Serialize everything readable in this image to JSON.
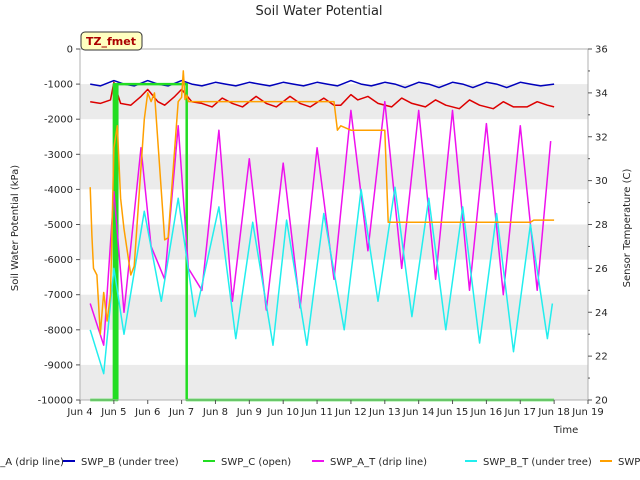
{
  "chart_data": {
    "type": "line",
    "title": "Soil Water Potential",
    "xlabel": "Time",
    "ylabel": "Soil Water Potential (kPa)",
    "y2label": "Sensor Temperature (C)",
    "xlim": [
      4,
      19
    ],
    "ylim": [
      -10000,
      0
    ],
    "y2lim": [
      20,
      36
    ],
    "x_ticks": [
      4,
      5,
      6,
      7,
      8,
      9,
      10,
      11,
      12,
      13,
      14,
      15,
      16,
      17,
      18,
      19
    ],
    "x_tick_labels": [
      "Jun 4",
      "Jun 5",
      "Jun 6",
      "Jun 7",
      "Jun 8",
      "Jun 9",
      "Jun 10",
      "Jun 11",
      "Jun 12",
      "Jun 13",
      "Jun 14",
      "Jun 15",
      "Jun 16",
      "Jun 17",
      "Jun 18",
      "Jun 19"
    ],
    "y_ticks": [
      0,
      -1000,
      -2000,
      -3000,
      -4000,
      -5000,
      -6000,
      -7000,
      -8000,
      -9000,
      -10000
    ],
    "y_tick_labels": [
      "0",
      "-1000",
      "-2000",
      "-3000",
      "-4000",
      "-5000",
      "-6000",
      "-7000",
      "-8000",
      "-9000",
      "-10000"
    ],
    "y2_ticks": [
      20,
      22,
      24,
      26,
      28,
      30,
      32,
      34,
      36
    ],
    "y2_tick_labels": [
      "20",
      "22",
      "24",
      "26",
      "28",
      "30",
      "32",
      "34",
      "36"
    ],
    "grid": "horizontal-bands",
    "legend_position": "bottom",
    "annotation": "TZ_fmet",
    "series": [
      {
        "name": "SWP_A (drip line)",
        "legend_label": "SWP_A (drip line)",
        "axis": "left",
        "color": "#dd0000",
        "x": [
          4.3,
          4.6,
          4.9,
          5.0,
          5.2,
          5.5,
          5.8,
          6.0,
          6.3,
          6.5,
          6.8,
          7.0,
          7.3,
          7.6,
          7.9,
          8.2,
          8.5,
          8.8,
          9.2,
          9.5,
          9.8,
          10.2,
          10.5,
          10.8,
          11.2,
          11.5,
          11.7,
          12.0,
          12.2,
          12.5,
          12.8,
          13.2,
          13.5,
          13.8,
          14.2,
          14.5,
          14.8,
          15.2,
          15.5,
          15.8,
          16.2,
          16.5,
          16.8,
          17.2,
          17.5,
          17.8,
          18.0
        ],
        "y": [
          -1500,
          -1550,
          -1450,
          -950,
          -1550,
          -1600,
          -1350,
          -1150,
          -1500,
          -1600,
          -1350,
          -1150,
          -1500,
          -1550,
          -1650,
          -1400,
          -1550,
          -1650,
          -1350,
          -1550,
          -1650,
          -1350,
          -1550,
          -1650,
          -1400,
          -1600,
          -1600,
          -1300,
          -1450,
          -1350,
          -1550,
          -1650,
          -1400,
          -1550,
          -1650,
          -1450,
          -1600,
          -1700,
          -1450,
          -1600,
          -1700,
          -1500,
          -1650,
          -1650,
          -1500,
          -1600,
          -1650
        ]
      },
      {
        "name": "SWP_B (under tree)",
        "legend_label": "SWP_B (under tree)",
        "axis": "left",
        "color": "#0000bb",
        "x": [
          4.3,
          4.6,
          5.0,
          5.3,
          5.6,
          6.0,
          6.3,
          6.6,
          7.0,
          7.3,
          7.6,
          8.0,
          8.3,
          8.6,
          9.0,
          9.3,
          9.6,
          10.0,
          10.3,
          10.6,
          11.0,
          11.3,
          11.6,
          12.0,
          12.3,
          12.6,
          13.0,
          13.3,
          13.6,
          14.0,
          14.3,
          14.6,
          15.0,
          15.3,
          15.6,
          16.0,
          16.3,
          16.6,
          17.0,
          17.3,
          17.6,
          18.0
        ],
        "y": [
          -1000,
          -1050,
          -900,
          -1000,
          -1050,
          -900,
          -1000,
          -1050,
          -900,
          -1000,
          -1050,
          -950,
          -1000,
          -1050,
          -950,
          -1000,
          -1050,
          -950,
          -1000,
          -1050,
          -950,
          -1000,
          -1050,
          -900,
          -1000,
          -1050,
          -950,
          -1000,
          -1100,
          -950,
          -1000,
          -1100,
          -950,
          -1000,
          -1100,
          -950,
          -1000,
          -1100,
          -950,
          -1000,
          -1050,
          -1000
        ]
      },
      {
        "name": "SWP_C (open)",
        "legend_label": "SWP_C (open)",
        "axis": "left",
        "color": "#22dd22",
        "x": [
          4.3,
          5.0,
          5.0,
          5.05,
          5.05,
          5.1,
          5.1,
          7.15,
          7.15,
          7.2,
          7.2,
          18.0
        ],
        "y": [
          -10000,
          -10000,
          -1000,
          -1000,
          -10000,
          -10000,
          -1000,
          -1000,
          -10000,
          -10000,
          -10000,
          -10000
        ]
      },
      {
        "name": "SWP_A_T (drip line)",
        "legend_label": "SWP_A_T (drip line)",
        "axis": "right",
        "color": "#ee11ee",
        "x": [
          4.3,
          4.7,
          5.0,
          5.3,
          5.8,
          6.1,
          6.5,
          6.9,
          7.2,
          7.6,
          8.1,
          8.5,
          9.0,
          9.5,
          10.0,
          10.5,
          11.0,
          11.5,
          12.0,
          12.5,
          13.0,
          13.5,
          14.0,
          14.5,
          15.0,
          15.5,
          16.0,
          16.5,
          17.0,
          17.5,
          17.9
        ],
        "y": [
          24.4,
          22.5,
          29.5,
          24.0,
          31.5,
          27.0,
          25.5,
          32.5,
          26.0,
          25.0,
          32.3,
          24.5,
          31.0,
          24.1,
          30.8,
          24.2,
          31.5,
          25.5,
          33.2,
          26.8,
          33.6,
          26.0,
          33.2,
          25.5,
          33.2,
          25.0,
          32.6,
          24.8,
          32.5,
          25.0,
          31.8
        ]
      },
      {
        "name": "SWP_B_T (under tree)",
        "legend_label": "SWP_B_T (under tree)",
        "axis": "right",
        "color": "#22eeee",
        "x": [
          4.3,
          4.7,
          5.0,
          5.3,
          5.9,
          6.4,
          6.9,
          7.4,
          8.1,
          8.6,
          9.1,
          9.7,
          10.1,
          10.7,
          11.2,
          11.8,
          12.3,
          12.8,
          13.3,
          13.8,
          14.3,
          14.8,
          15.3,
          15.8,
          16.3,
          16.8,
          17.3,
          17.8,
          17.95
        ],
        "y": [
          23.2,
          21.2,
          26.0,
          23.0,
          28.6,
          24.5,
          29.2,
          23.8,
          28.8,
          22.8,
          28.1,
          22.5,
          28.2,
          22.5,
          28.5,
          23.2,
          29.6,
          24.5,
          29.7,
          23.8,
          29.2,
          23.2,
          28.8,
          22.6,
          28.5,
          22.2,
          28.0,
          22.8,
          24.4
        ]
      },
      {
        "name": "SWP_C_T (open)",
        "legend_label": "SWP_C_T (open)",
        "axis": "right",
        "color": "#ffa000",
        "x": [
          4.3,
          4.35,
          4.4,
          4.5,
          4.6,
          4.7,
          4.8,
          4.9,
          5.0,
          5.1,
          5.2,
          5.3,
          5.5,
          5.6,
          5.9,
          6.0,
          6.1,
          6.2,
          6.5,
          6.6,
          6.9,
          7.0,
          7.05,
          7.1,
          7.15,
          7.2,
          8.0,
          11.5,
          11.6,
          11.7,
          12.0,
          13.0,
          13.1,
          14.0,
          15.0,
          16.0,
          17.0,
          17.3,
          17.4,
          18.0
        ],
        "y": [
          29.7,
          27.5,
          26.0,
          25.7,
          23.0,
          24.9,
          23.6,
          24.8,
          31.5,
          32.5,
          29.2,
          27.8,
          25.7,
          26.1,
          32.8,
          34.0,
          33.6,
          34.0,
          27.3,
          27.4,
          33.6,
          33.8,
          35.0,
          33.7,
          33.9,
          33.6,
          33.6,
          33.6,
          32.3,
          32.5,
          32.3,
          32.3,
          28.1,
          28.1,
          28.1,
          28.1,
          28.1,
          28.1,
          28.2,
          28.2
        ]
      }
    ]
  }
}
